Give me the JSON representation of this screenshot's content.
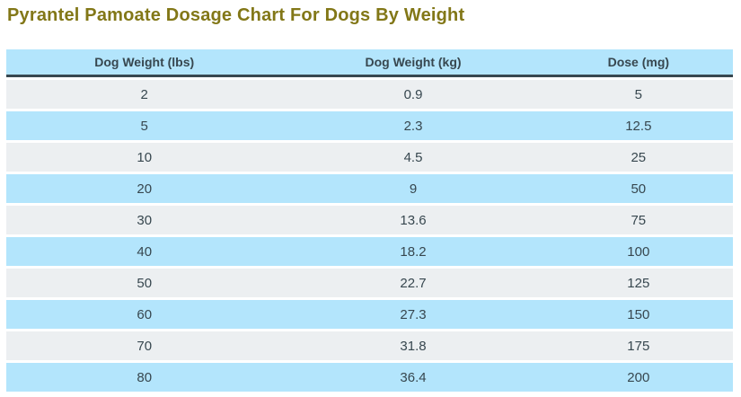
{
  "title": "Pyrantel Pamoate Dosage Chart For Dogs By Weight",
  "colors": {
    "page-bg": "#ffffff",
    "title-color": "#827717",
    "header-bg": "#b3e5fc",
    "header-text": "#37474f",
    "header-border": "#37474f",
    "row-blue": "#b3e5fc",
    "row-gray": "#eceff1",
    "cell-text": "#37474f"
  },
  "chart_data": {
    "type": "table",
    "title": "Pyrantel Pamoate Dosage Chart For Dogs By Weight",
    "columns": [
      "Dog Weight (lbs)",
      "Dog Weight (kg)",
      "Dose (mg)"
    ],
    "rows": [
      [
        "2",
        "0.9",
        "5"
      ],
      [
        "5",
        "2.3",
        "12.5"
      ],
      [
        "10",
        "4.5",
        "25"
      ],
      [
        "20",
        "9",
        "50"
      ],
      [
        "30",
        "13.6",
        "75"
      ],
      [
        "40",
        "18.2",
        "100"
      ],
      [
        "50",
        "22.7",
        "125"
      ],
      [
        "60",
        "27.3",
        "150"
      ],
      [
        "70",
        "31.8",
        "175"
      ],
      [
        "80",
        "36.4",
        "200"
      ]
    ],
    "layout": {
      "grid": false,
      "row_striping": "alternating gray/blue",
      "alignment": "center"
    }
  }
}
